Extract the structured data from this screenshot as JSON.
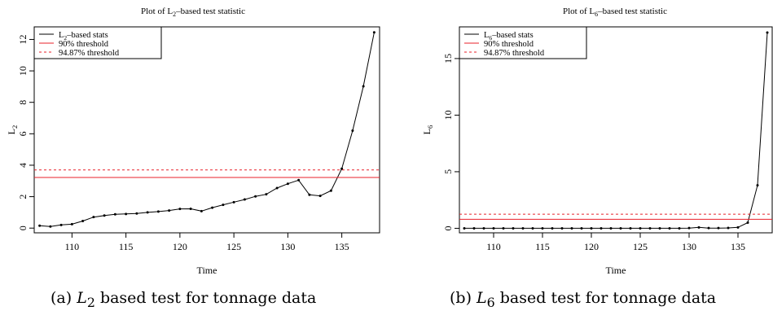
{
  "captions": [
    {
      "prefix": "(a) ",
      "var": "L",
      "sub": "2",
      "text": " based test for tonnage data"
    },
    {
      "prefix": "(b) ",
      "var": "L",
      "sub": "6",
      "text": " based test for tonnage data"
    }
  ],
  "chart_data": [
    {
      "type": "line",
      "title": {
        "pre": "Plot of L",
        "sub": "2",
        "post": "–based test statistic"
      },
      "xlabel": "Time",
      "ylabel": {
        "pre": "L",
        "sub": "2"
      },
      "xlim": [
        106.5,
        138.5
      ],
      "ylim": [
        -0.3,
        12.8
      ],
      "xticks": [
        110,
        115,
        120,
        125,
        130,
        135
      ],
      "yticks": [
        0,
        2,
        4,
        6,
        8,
        10,
        12
      ],
      "grid": false,
      "legend_position": "top-left",
      "series": [
        {
          "name": {
            "pre": "L",
            "sub": "2",
            "post": "–based stats"
          },
          "style": "line-points",
          "color": "#000000",
          "x": [
            107,
            108,
            109,
            110,
            111,
            112,
            113,
            114,
            115,
            116,
            117,
            118,
            119,
            120,
            121,
            122,
            123,
            124,
            125,
            126,
            127,
            128,
            129,
            130,
            131,
            132,
            133,
            134,
            135,
            136,
            137,
            138
          ],
          "y": [
            0.15,
            0.1,
            0.2,
            0.25,
            0.45,
            0.7,
            0.8,
            0.88,
            0.9,
            0.93,
            1.0,
            1.05,
            1.12,
            1.22,
            1.23,
            1.08,
            1.3,
            1.48,
            1.65,
            1.82,
            2.02,
            2.15,
            2.55,
            2.82,
            3.05,
            2.12,
            2.05,
            2.38,
            3.78,
            6.2,
            9.02,
            12.45
          ]
        },
        {
          "name": "90% threshold",
          "style": "hline",
          "color": "#e8202a",
          "dash": false,
          "y": 3.22
        },
        {
          "name": "94.87% threshold",
          "style": "hline",
          "color": "#e8202a",
          "dash": true,
          "y": 3.7
        }
      ]
    },
    {
      "type": "line",
      "title": {
        "pre": "Plot of L",
        "sub": "6",
        "post": "–based test statistic"
      },
      "xlabel": "Time",
      "ylabel": {
        "pre": "L",
        "sub": "6"
      },
      "xlim": [
        106.5,
        138.5
      ],
      "ylim": [
        -0.4,
        17.8
      ],
      "xticks": [
        110,
        115,
        120,
        125,
        130,
        135
      ],
      "yticks": [
        0,
        5,
        10,
        15
      ],
      "grid": false,
      "legend_position": "top-left",
      "series": [
        {
          "name": {
            "pre": "L",
            "sub": "6",
            "post": "–based stats"
          },
          "style": "line-points",
          "color": "#000000",
          "x": [
            107,
            108,
            109,
            110,
            111,
            112,
            113,
            114,
            115,
            116,
            117,
            118,
            119,
            120,
            121,
            122,
            123,
            124,
            125,
            126,
            127,
            128,
            129,
            130,
            131,
            132,
            133,
            134,
            135,
            136,
            137,
            138
          ],
          "y": [
            0,
            0,
            0,
            0,
            0,
            0,
            0,
            0,
            0,
            0,
            0,
            0,
            0,
            0,
            0,
            0,
            0,
            0,
            0,
            0,
            0,
            0,
            0,
            0.02,
            0.08,
            0.02,
            0.02,
            0.03,
            0.08,
            0.5,
            3.8,
            17.3
          ]
        },
        {
          "name": "90% threshold",
          "style": "hline",
          "color": "#e8202a",
          "dash": false,
          "y": 0.8
        },
        {
          "name": "94.87% threshold",
          "style": "hline",
          "color": "#e8202a",
          "dash": true,
          "y": 1.25
        }
      ]
    }
  ]
}
